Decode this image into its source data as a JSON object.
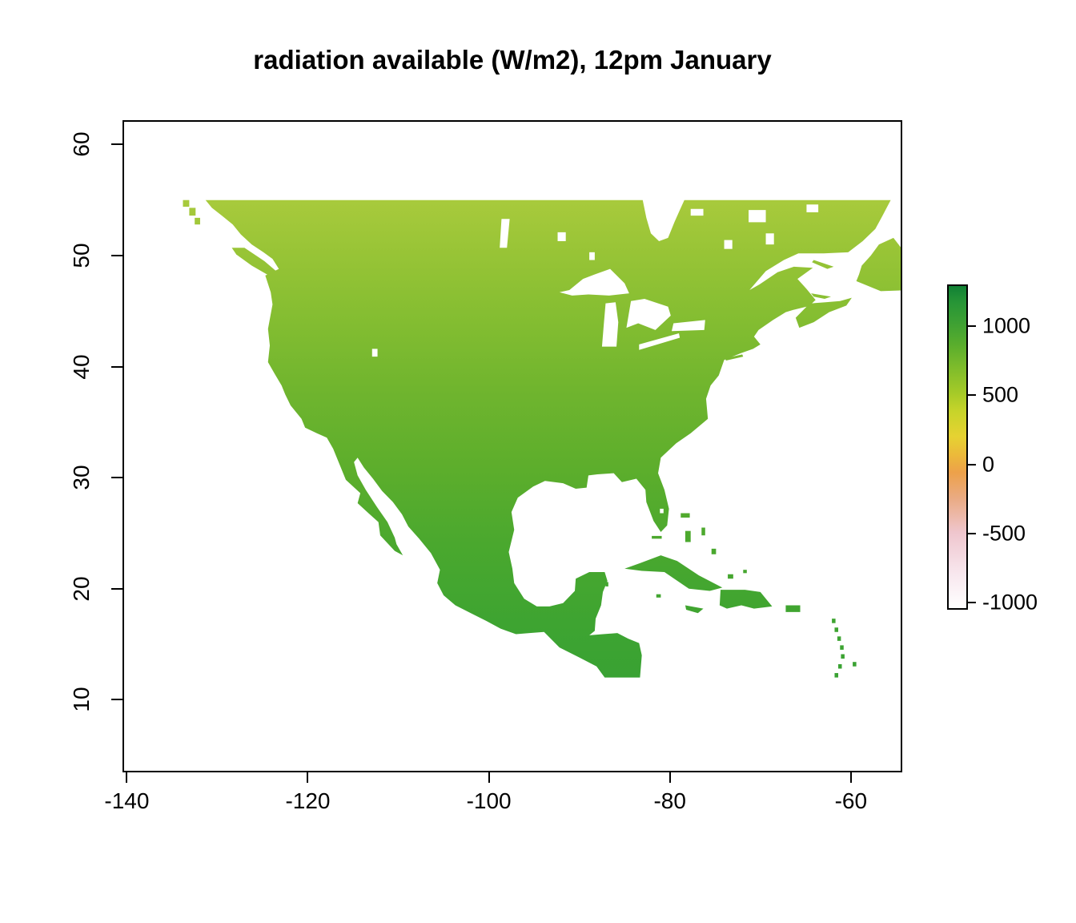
{
  "chart_data": {
    "type": "heatmap",
    "title": "radiation available (W/m2), 12pm January",
    "variable": "radiation available",
    "units": "W/m2",
    "time_label": "12pm January",
    "region": "North America",
    "x_axis": {
      "label": "",
      "ticks": [
        -140,
        -120,
        -100,
        -80,
        -60
      ],
      "range": [
        -140.3,
        -54.5
      ]
    },
    "y_axis": {
      "label": "",
      "ticks": [
        10,
        20,
        30,
        40,
        50,
        60
      ],
      "range": [
        3.6,
        62.05
      ]
    },
    "grid": false,
    "background": "#ffffff",
    "no_data_color": "#ffffff",
    "data_extent": {
      "lon_min": -135,
      "lon_max": -55,
      "lat_min": 12,
      "lat_max": 55
    },
    "approx_values_by_latitude": {
      "lat": [
        55,
        50,
        45,
        40,
        35,
        30,
        25,
        20,
        15
      ],
      "radiation_w_m2": [
        480,
        540,
        610,
        680,
        740,
        800,
        860,
        920,
        970
      ]
    },
    "legend": {
      "position": "right",
      "ticks": [
        1000,
        500,
        0,
        -500,
        -1000
      ],
      "range": [
        -1050,
        1300
      ],
      "color_stops": [
        {
          "value": -1050,
          "color": "#ffffff"
        },
        {
          "value": -800,
          "color": "#f8e7ee"
        },
        {
          "value": -500,
          "color": "#efc6ce"
        },
        {
          "value": -250,
          "color": "#eaab84"
        },
        {
          "value": -60,
          "color": "#eda14a"
        },
        {
          "value": 60,
          "color": "#ecb83b"
        },
        {
          "value": 200,
          "color": "#e6d232"
        },
        {
          "value": 380,
          "color": "#c8d42a"
        },
        {
          "value": 520,
          "color": "#a5ca28"
        },
        {
          "value": 700,
          "color": "#7fbc2b"
        },
        {
          "value": 880,
          "color": "#58ad2d"
        },
        {
          "value": 1020,
          "color": "#3fa133"
        },
        {
          "value": 1180,
          "color": "#279536"
        },
        {
          "value": 1300,
          "color": "#118035"
        }
      ]
    },
    "map_fill_stops": [
      {
        "lat": 55,
        "color": "#a8ca3c"
      },
      {
        "lat": 50,
        "color": "#97c436"
      },
      {
        "lat": 44,
        "color": "#83bd31"
      },
      {
        "lat": 38,
        "color": "#70b52e"
      },
      {
        "lat": 31,
        "color": "#5dae2c"
      },
      {
        "lat": 24,
        "color": "#4aa82e"
      },
      {
        "lat": 17,
        "color": "#3ea431"
      },
      {
        "lat": 12,
        "color": "#39a233"
      }
    ]
  }
}
